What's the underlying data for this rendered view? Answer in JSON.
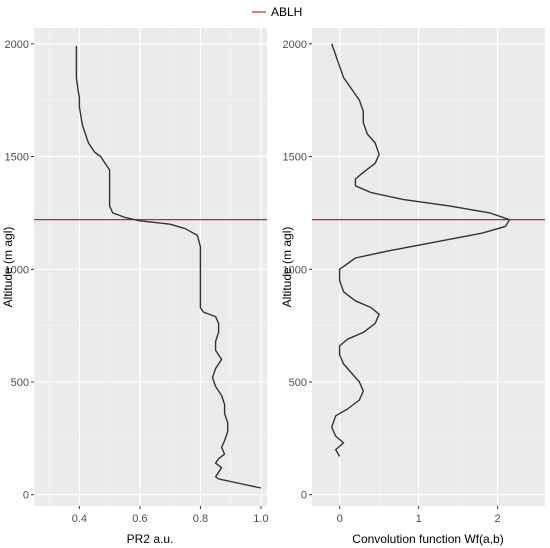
{
  "legend": {
    "label": "ABLH",
    "color": "#e31a1c",
    "position": "top"
  },
  "colors": {
    "panel_bg": "#ebebeb",
    "grid_major": "#ffffff",
    "line": "#333333",
    "ablh": "#e31a1c"
  },
  "chart_data": [
    {
      "type": "line",
      "title": "",
      "xlabel": "PR2 a.u.",
      "ylabel": "Altitude (m agl)",
      "xlim": [
        0.25,
        1.02
      ],
      "ylim": [
        -50,
        2070
      ],
      "xticks": [
        0.4,
        0.6,
        0.8,
        1.0
      ],
      "xtick_labels": [
        "0.4",
        "0.6",
        "0.8",
        "1.0"
      ],
      "yticks": [
        0,
        500,
        1000,
        1500,
        2000
      ],
      "ytick_labels": [
        "0",
        "500",
        "1000",
        "1500",
        "2000"
      ],
      "grid": true,
      "ablh": 1220,
      "series": [
        {
          "x": [
            0.39,
            0.39,
            0.39,
            0.39,
            0.395,
            0.4,
            0.4,
            0.405,
            0.41,
            0.42,
            0.43,
            0.45,
            0.47,
            0.48,
            0.49,
            0.5,
            0.5,
            0.5,
            0.5,
            0.5,
            0.51,
            0.55,
            0.6,
            0.7,
            0.75,
            0.79,
            0.8,
            0.8,
            0.8,
            0.8,
            0.8,
            0.8,
            0.8,
            0.8,
            0.81,
            0.85,
            0.86,
            0.86,
            0.85,
            0.85,
            0.87,
            0.85,
            0.84,
            0.85,
            0.87,
            0.88,
            0.88,
            0.89,
            0.89,
            0.88,
            0.87,
            0.88,
            0.86,
            0.85,
            0.87,
            0.86,
            0.85,
            0.86,
            0.93,
            1.0
          ],
          "y": [
            1990,
            1950,
            1900,
            1850,
            1800,
            1760,
            1720,
            1680,
            1640,
            1600,
            1560,
            1520,
            1500,
            1480,
            1460,
            1440,
            1400,
            1360,
            1320,
            1280,
            1250,
            1230,
            1215,
            1200,
            1180,
            1150,
            1100,
            1050,
            1000,
            950,
            900,
            870,
            850,
            830,
            810,
            790,
            760,
            720,
            680,
            640,
            600,
            560,
            520,
            480,
            440,
            400,
            360,
            320,
            280,
            240,
            210,
            180,
            160,
            140,
            120,
            100,
            80,
            70,
            50,
            30
          ]
        }
      ]
    },
    {
      "type": "line",
      "title": "",
      "xlabel": "Convolution function Wf(a,b)",
      "ylabel": "Altitude (m agl)",
      "xlim": [
        -0.35,
        2.6
      ],
      "ylim": [
        -50,
        2070
      ],
      "xticks": [
        0,
        1,
        2
      ],
      "xtick_labels": [
        "0",
        "1",
        "2"
      ],
      "yticks": [
        0,
        500,
        1000,
        1500,
        2000
      ],
      "ytick_labels": [
        "0",
        "500",
        "1000",
        "1500",
        "2000"
      ],
      "grid": true,
      "ablh": 1220,
      "series": [
        {
          "x": [
            -0.1,
            -0.05,
            0.0,
            0.05,
            0.15,
            0.25,
            0.3,
            0.3,
            0.35,
            0.45,
            0.5,
            0.45,
            0.3,
            0.2,
            0.2,
            0.4,
            0.8,
            1.4,
            1.9,
            2.15,
            2.1,
            1.8,
            1.2,
            0.6,
            0.2,
            0.0,
            0.0,
            0.05,
            0.2,
            0.4,
            0.5,
            0.45,
            0.3,
            0.1,
            0.0,
            0.0,
            0.05,
            0.15,
            0.25,
            0.3,
            0.25,
            0.1,
            -0.05,
            -0.1,
            -0.05,
            0.05,
            -0.05,
            0.0
          ],
          "y": [
            2000,
            1950,
            1900,
            1850,
            1800,
            1750,
            1700,
            1650,
            1600,
            1560,
            1510,
            1470,
            1430,
            1400,
            1370,
            1340,
            1310,
            1280,
            1250,
            1220,
            1190,
            1160,
            1120,
            1080,
            1050,
            1000,
            950,
            900,
            860,
            830,
            800,
            760,
            720,
            690,
            660,
            620,
            580,
            540,
            500,
            460,
            420,
            380,
            350,
            300,
            260,
            230,
            200,
            170
          ]
        }
      ]
    }
  ]
}
